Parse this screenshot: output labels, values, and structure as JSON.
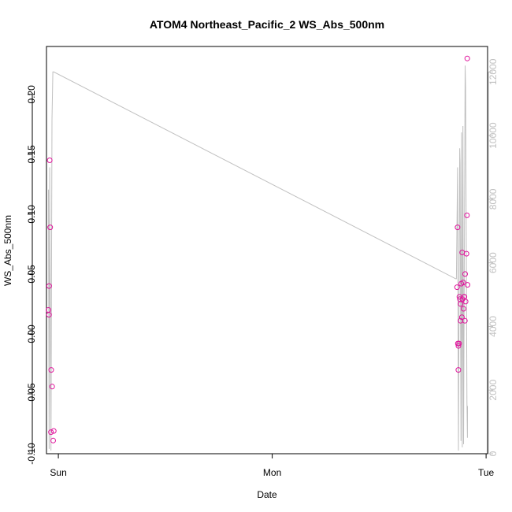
{
  "chart_data": {
    "type": "scatter",
    "title": "ATOM4 Northeast_Pacific_2 WS_Abs_500nm",
    "xlabel": "Date",
    "ylabel": "WS_Abs_500nm",
    "x_ticks": [
      "Sun",
      "Mon",
      "Tue"
    ],
    "xlim": [
      "Sat 22:40",
      "Tue 00:10"
    ],
    "ylim": [
      -0.1,
      0.24
    ],
    "y_ticks": [
      "-0.10",
      "-0.05",
      "0.00",
      "0.05",
      "0.10",
      "0.15",
      "0.20"
    ],
    "y2_ticks": [
      "0",
      "2000",
      "4000",
      "6000",
      "8000",
      "10000",
      "12000"
    ],
    "y2lim": [
      0,
      12800
    ],
    "grid": false,
    "series": [
      {
        "kind": "points",
        "color": "#e0149c",
        "points": [
          {
            "x": "Sat 22:53",
            "y": 0.02
          },
          {
            "x": "Sat 22:57",
            "y": 0.016
          },
          {
            "x": "Sat 22:58",
            "y": 0.04
          },
          {
            "x": "Sat 23:02",
            "y": 0.145
          },
          {
            "x": "Sat 23:05",
            "y": 0.089
          },
          {
            "x": "Sat 23:10",
            "y": -0.082
          },
          {
            "x": "Sat 23:12",
            "y": -0.03
          },
          {
            "x": "Sat 23:18",
            "y": -0.044
          },
          {
            "x": "Sat 23:25",
            "y": -0.089
          },
          {
            "x": "Sat 23:29",
            "y": -0.081
          },
          {
            "x": "Mon 20:45",
            "y": 0.039
          },
          {
            "x": "Mon 20:48",
            "y": 0.089
          },
          {
            "x": "Mon 20:50",
            "y": -0.008
          },
          {
            "x": "Mon 20:53",
            "y": -0.03
          },
          {
            "x": "Mon 20:54",
            "y": -0.01
          },
          {
            "x": "Mon 20:58",
            "y": -0.008
          },
          {
            "x": "Mon 21:00",
            "y": 0.031
          },
          {
            "x": "Mon 21:04",
            "y": 0.029
          },
          {
            "x": "Mon 21:08",
            "y": 0.025
          },
          {
            "x": "Mon 21:08",
            "y": 0.011
          },
          {
            "x": "Mon 21:13",
            "y": 0.042
          },
          {
            "x": "Mon 21:17",
            "y": 0.014
          },
          {
            "x": "Mon 21:19",
            "y": 0.068
          },
          {
            "x": "Mon 21:21",
            "y": 0.029
          },
          {
            "x": "Mon 21:26",
            "y": 0.043
          },
          {
            "x": "Mon 21:28",
            "y": 0.021
          },
          {
            "x": "Mon 21:32",
            "y": 0.031
          },
          {
            "x": "Mon 21:34",
            "y": 0.031
          },
          {
            "x": "Mon 21:37",
            "y": 0.011
          },
          {
            "x": "Mon 21:39",
            "y": 0.05
          },
          {
            "x": "Mon 21:42",
            "y": 0.027
          },
          {
            "x": "Mon 21:48",
            "y": 0.067
          },
          {
            "x": "Mon 21:51",
            "y": 0.099
          },
          {
            "x": "Mon 21:53",
            "y": 0.23
          },
          {
            "x": "Mon 21:55",
            "y": 0.041
          }
        ]
      },
      {
        "kind": "line",
        "axis": "right",
        "color": "#c0c0c0",
        "points": [
          {
            "x": "Sat 22:53",
            "y": 8300
          },
          {
            "x": "Sat 22:58",
            "y": 150
          },
          {
            "x": "Sat 23:02",
            "y": 9000
          },
          {
            "x": "Sat 23:10",
            "y": 100
          },
          {
            "x": "Sat 23:17",
            "y": 10500
          },
          {
            "x": "Sat 23:23",
            "y": 12000
          },
          {
            "x": "Sat 23:29",
            "y": 12000
          },
          {
            "x": "Mon 20:35",
            "y": 5500
          },
          {
            "x": "Mon 20:40",
            "y": 5500
          },
          {
            "x": "Mon 20:48",
            "y": 9000
          },
          {
            "x": "Mon 20:54",
            "y": 100
          },
          {
            "x": "Mon 21:02",
            "y": 9600
          },
          {
            "x": "Mon 21:05",
            "y": 9100
          },
          {
            "x": "Mon 21:11",
            "y": 400
          },
          {
            "x": "Mon 21:15",
            "y": 10100
          },
          {
            "x": "Mon 21:20",
            "y": 200
          },
          {
            "x": "Mon 21:24",
            "y": 10300
          },
          {
            "x": "Mon 21:28",
            "y": 300
          },
          {
            "x": "Mon 21:39",
            "y": 12200
          },
          {
            "x": "Mon 21:42",
            "y": 11500
          },
          {
            "x": "Mon 21:51",
            "y": 1600
          },
          {
            "x": "Mon 21:54",
            "y": 500
          },
          {
            "x": "Mon 21:55",
            "y": 1500
          }
        ]
      }
    ]
  }
}
